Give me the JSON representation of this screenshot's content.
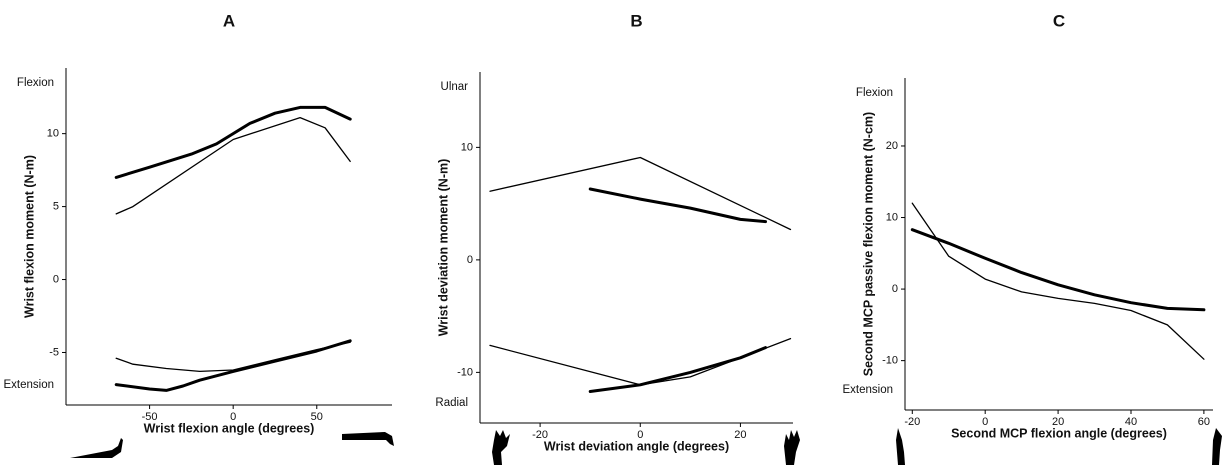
{
  "chart_data": [
    {
      "type": "line",
      "title": "A",
      "x_label": "Wrist  flexion  angle  (degrees)",
      "y_label": "Wrist  flexion  moment  (N-m)",
      "annotations": [
        "Flexion",
        "Extension"
      ],
      "xlim": [
        -100,
        95
      ],
      "xticks": [
        -50,
        0,
        50
      ],
      "ylim": [
        -8.6,
        14.5
      ],
      "yticks": [
        10,
        5,
        0,
        -5
      ],
      "series": [
        {
          "color": "#000000",
          "line_width": 3,
          "x": [
            -70,
            -50,
            -25,
            -10,
            0,
            10,
            25,
            40,
            55,
            70
          ],
          "values": [
            7.0,
            7.7,
            8.6,
            9.3,
            10.0,
            10.7,
            11.4,
            11.8,
            11.8,
            11.0
          ]
        },
        {
          "color": "#000000",
          "line_width": 1.3,
          "x": [
            -70,
            -60,
            0,
            40,
            55,
            70
          ],
          "values": [
            4.5,
            5.0,
            9.6,
            11.1,
            10.4,
            8.1
          ]
        },
        {
          "color": "#000000",
          "line_width": 3,
          "x": [
            -70,
            -50,
            -40,
            -30,
            -20,
            0,
            25,
            50,
            70
          ],
          "values": [
            -7.2,
            -7.5,
            -7.6,
            -7.3,
            -6.9,
            -6.3,
            -5.6,
            -4.9,
            -4.2
          ]
        },
        {
          "color": "#000000",
          "line_width": 1.3,
          "x": [
            -70,
            -60,
            -40,
            -20,
            0,
            25,
            50,
            70
          ],
          "values": [
            -5.4,
            -5.8,
            -6.1,
            -6.3,
            -6.2,
            -5.5,
            -4.8,
            -4.3
          ]
        }
      ]
    },
    {
      "type": "line",
      "title": "B",
      "x_label": "Wrist  deviation  angle  (degrees)",
      "y_label": "Wrist  deviation  moment  (N-m)",
      "annotations": [
        "Ulnar",
        "Radial"
      ],
      "xlim": [
        -32,
        30.5
      ],
      "xticks": [
        -20,
        0,
        20
      ],
      "ylim": [
        -14.5,
        16.7
      ],
      "yticks": [
        10,
        0,
        -10
      ],
      "series": [
        {
          "color": "#000000",
          "line_width": 1.3,
          "x": [
            -30,
            0,
            30
          ],
          "values": [
            6.1,
            9.1,
            2.7
          ]
        },
        {
          "color": "#000000",
          "line_width": 3,
          "x": [
            -10,
            0,
            10,
            20,
            25
          ],
          "values": [
            6.3,
            5.4,
            4.6,
            3.6,
            3.4
          ]
        },
        {
          "color": "#000000",
          "line_width": 1.3,
          "x": [
            -30,
            0,
            10,
            20,
            30
          ],
          "values": [
            -7.6,
            -11.1,
            -10.4,
            -8.7,
            -7.0
          ]
        },
        {
          "color": "#000000",
          "line_width": 3,
          "x": [
            -10,
            0,
            10,
            20,
            25
          ],
          "values": [
            -11.7,
            -11.1,
            -10.0,
            -8.7,
            -7.8
          ]
        }
      ]
    },
    {
      "type": "line",
      "title": "C",
      "x_label": "Second  MCP  flexion  angle  (degrees)",
      "y_label": "Second  MCP  passive  flexion  moment  (N-cm)",
      "annotations": [
        "Flexion",
        "Extension"
      ],
      "xlim": [
        -22,
        62.5
      ],
      "xticks": [
        -20,
        0,
        20,
        40,
        60
      ],
      "ylim": [
        -16.9,
        29.5
      ],
      "yticks": [
        20,
        10,
        0,
        -10
      ],
      "series": [
        {
          "color": "#000000",
          "line_width": 1.3,
          "x": [
            -20,
            -10,
            0,
            10,
            20,
            30,
            40,
            50,
            60
          ],
          "values": [
            12.0,
            4.6,
            1.4,
            -0.4,
            -1.3,
            -2.0,
            -3.0,
            -5.0,
            -9.8
          ]
        },
        {
          "color": "#000000",
          "line_width": 3,
          "x": [
            -20,
            -10,
            0,
            10,
            20,
            30,
            40,
            50,
            60
          ],
          "values": [
            8.3,
            6.4,
            4.3,
            2.3,
            0.6,
            -0.8,
            -1.9,
            -2.7,
            -2.9
          ]
        }
      ]
    }
  ]
}
